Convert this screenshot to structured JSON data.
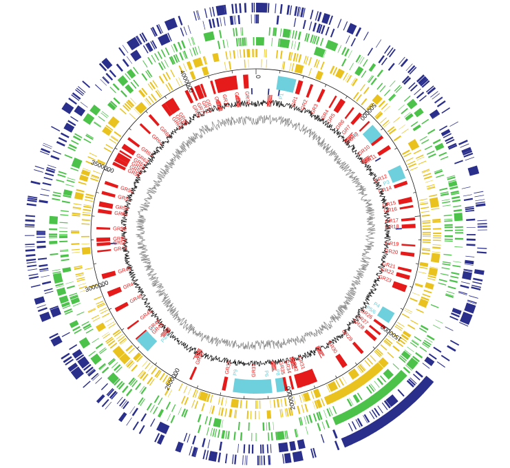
{
  "genome": {
    "length_bp": 4300000,
    "axis_ticks": [
      {
        "pos": 0,
        "label": "0"
      },
      {
        "pos": 500000,
        "label": "500000"
      },
      {
        "pos": 1000000,
        "label": ""
      },
      {
        "pos": 1500000,
        "label": "1500000"
      },
      {
        "pos": 2000000,
        "label": "2000000"
      },
      {
        "pos": 2500000,
        "label": "2500000"
      },
      {
        "pos": 3000000,
        "label": "3000000"
      },
      {
        "pos": 3500000,
        "label": "3500000"
      },
      {
        "pos": 4000000,
        "label": "4000000"
      }
    ]
  },
  "colors": {
    "navy": "#2b2f8c",
    "green": "#4cc24a",
    "gold": "#e9c21f",
    "red": "#e51b1b",
    "cyan": "#6dd0dc",
    "gc_content": "#111111",
    "gc_skew": "#8c8c8c",
    "highlight": "#e51b1b"
  },
  "genomic_islands": [
    {
      "label": "GR1",
      "pos": 195000
    },
    {
      "label": "GR2",
      "pos": 245000
    },
    {
      "label": "GR3",
      "pos": 300000
    },
    {
      "label": "GR4",
      "pos": 360000
    },
    {
      "label": "GR5",
      "pos": 395000
    },
    {
      "label": "GR6",
      "pos": 450000
    },
    {
      "label": "GR7",
      "pos": 490000
    },
    {
      "label": "GR8",
      "pos": 540000
    },
    {
      "label": "GR10",
      "pos": 625000
    },
    {
      "label": "GR11",
      "pos": 680000
    },
    {
      "label": "GR12",
      "pos": 790000
    },
    {
      "label": "GR14",
      "pos": 850000
    },
    {
      "label": "GR15",
      "pos": 925000
    },
    {
      "label": "GR16",
      "pos": 955000
    },
    {
      "label": "GR17",
      "pos": 1010000
    },
    {
      "label": "GR18",
      "pos": 1040000
    },
    {
      "label": "GR19",
      "pos": 1125000
    },
    {
      "label": "GR20",
      "pos": 1165000
    },
    {
      "label": "GR21",
      "pos": 1235000
    },
    {
      "label": "GR22",
      "pos": 1265000
    },
    {
      "label": "GR23",
      "pos": 1305000
    },
    {
      "label": "GR26",
      "pos": 1505000
    },
    {
      "label": "GR27",
      "pos": 1540000
    },
    {
      "label": "GR28",
      "pos": 1570000
    },
    {
      "label": "GR29",
      "pos": 1650000
    },
    {
      "label": "GR30",
      "pos": 1745000
    },
    {
      "label": "GR31",
      "pos": 1920000
    },
    {
      "label": "GR32",
      "pos": 1955000
    },
    {
      "label": "GR34",
      "pos": 1990000
    },
    {
      "label": "GR35",
      "pos": 2020000
    },
    {
      "label": "GR37",
      "pos": 2160000
    },
    {
      "label": "GR39",
      "pos": 2290000
    },
    {
      "label": "GR40",
      "pos": 2440000
    },
    {
      "label": "GR43",
      "pos": 2700000
    },
    {
      "label": "GR44",
      "pos": 2725000
    },
    {
      "label": "GR45",
      "pos": 2790000
    },
    {
      "label": "GR46",
      "pos": 2885000
    },
    {
      "label": "GR47",
      "pos": 2960000
    },
    {
      "label": "GR48",
      "pos": 3040000
    },
    {
      "label": "GR49",
      "pos": 3150000
    },
    {
      "label": "GR50",
      "pos": 3180000
    },
    {
      "label": "GR51",
      "pos": 3200000
    },
    {
      "label": "GR52",
      "pos": 3250000
    },
    {
      "label": "GR53",
      "pos": 3325000
    },
    {
      "label": "GR54",
      "pos": 3355000
    },
    {
      "label": "GR55",
      "pos": 3405000
    },
    {
      "label": "GR56",
      "pos": 3450000
    },
    {
      "label": "GR57",
      "pos": 3540000
    },
    {
      "label": "GR58",
      "pos": 3560000
    },
    {
      "label": "GR59",
      "pos": 3580000
    },
    {
      "label": "GR61",
      "pos": 3600000
    },
    {
      "label": "GR62",
      "pos": 3625000
    },
    {
      "label": "GR63",
      "pos": 3665000
    },
    {
      "label": "GR64",
      "pos": 3745000
    },
    {
      "label": "GR65",
      "pos": 3800000
    },
    {
      "label": "GR66",
      "pos": 3875000
    },
    {
      "label": "GR67",
      "pos": 3895000
    },
    {
      "label": "GR68",
      "pos": 3915000
    },
    {
      "label": "GR69",
      "pos": 3990000
    },
    {
      "label": "GR71",
      "pos": 4015000
    },
    {
      "label": "GR72",
      "pos": 4040000
    },
    {
      "label": "GR73",
      "pos": 4060000
    },
    {
      "label": "GR76",
      "pos": 4105000
    },
    {
      "label": "GR77",
      "pos": 4145000
    },
    {
      "label": "GR78",
      "pos": 4205000
    },
    {
      "label": "GR79",
      "pos": 4255000
    }
  ],
  "prophages": [
    {
      "label": "P1",
      "pos": 125000
    },
    {
      "label": "P2",
      "pos": 545000
    },
    {
      "label": "P3",
      "pos": 820000
    },
    {
      "label": "P4",
      "pos": 1440000
    },
    {
      "label": "P5/6",
      "pos": 1475000
    },
    {
      "label": "P6",
      "pos": 2100000
    },
    {
      "label": "P8",
      "pos": 2045000
    },
    {
      "label": "P9",
      "pos": 2250000
    },
    {
      "label": "P7",
      "pos": 2715000
    },
    {
      "label": "P4/6",
      "pos": 2640000
    }
  ]
}
